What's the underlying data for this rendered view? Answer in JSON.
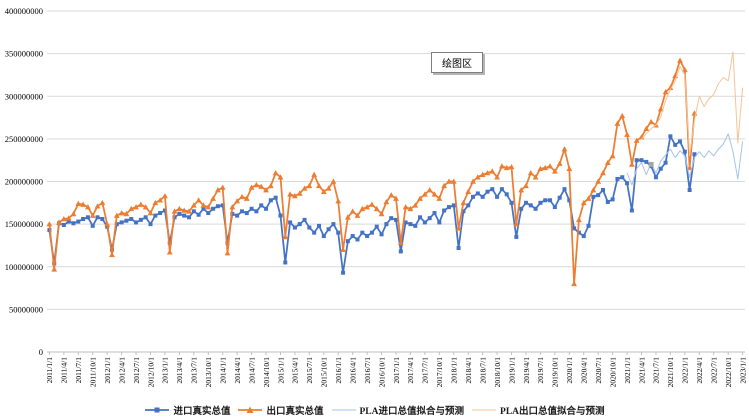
{
  "window": {
    "background": "#FFFFFF"
  },
  "chart_data": {
    "type": "line",
    "title": "",
    "plot_area_label": "绘图区",
    "grid": "horizontal-on",
    "legend_position": "bottom",
    "value_unit_multiplier": 1000000,
    "y_axis": {
      "min": 0,
      "max": 400000000,
      "step": 50000000,
      "tick_labels_top_to_bottom": [
        "400000000",
        "350000000",
        "300000000",
        "250000000",
        "200000000",
        "150000000",
        "100000000",
        "50000000",
        "0"
      ]
    },
    "x_axis": {
      "start": "2011/1/1",
      "end": "2023/1/1",
      "data_granularity": "monthly",
      "label_rotation_degrees": -90,
      "tick_labels": [
        "2011/1/1",
        "2011/4/1",
        "2011/7/1",
        "2011/10/1",
        "2012/1/1",
        "2012/4/1",
        "2012/7/1",
        "2012/10/1",
        "2013/1/1",
        "2013/4/1",
        "2013/7/1",
        "2013/10/1",
        "2014/1/1",
        "2014/4/1",
        "2014/7/1",
        "2014/10/1",
        "2015/1/1",
        "2015/4/1",
        "2015/7/1",
        "2015/10/1",
        "2016/1/1",
        "2016/4/1",
        "2016/7/1",
        "2016/10/1",
        "2017/1/1",
        "2017/4/1",
        "2017/7/1",
        "2017/10/1",
        "2018/1/1",
        "2018/4/1",
        "2018/7/1",
        "2018/10/1",
        "2019/1/1",
        "2019/4/1",
        "2019/7/1",
        "2019/10/1",
        "2020/1/1",
        "2020/4/1",
        "2020/7/1",
        "2020/10/1",
        "2021/1/1",
        "2021/4/1",
        "2021/7/1",
        "2021/10/1",
        "2022/1/1",
        "2022/4/1",
        "2022/7/1",
        "2022/10/1",
        "2023/1/1"
      ]
    },
    "series": [
      {
        "name": "进口真实总值",
        "color": "#4472C4",
        "marker": "square",
        "line_width": 1.75,
        "start_month_index": 0,
        "values_millions": [
          143,
          104,
          151,
          149,
          153,
          151,
          153,
          156,
          158,
          148,
          158,
          156,
          147,
          120,
          150,
          152,
          154,
          156,
          152,
          155,
          158,
          150,
          160,
          163,
          166,
          128,
          158,
          162,
          160,
          158,
          165,
          161,
          168,
          163,
          168,
          171,
          172,
          128,
          162,
          160,
          165,
          163,
          168,
          165,
          172,
          168,
          178,
          181,
          160,
          105,
          152,
          146,
          150,
          155,
          146,
          140,
          148,
          136,
          144,
          150,
          140,
          93,
          130,
          136,
          132,
          140,
          136,
          140,
          147,
          138,
          150,
          157,
          155,
          118,
          152,
          150,
          148,
          158,
          152,
          157,
          163,
          152,
          166,
          170,
          172,
          122,
          165,
          172,
          182,
          186,
          182,
          188,
          191,
          182,
          191,
          185,
          175,
          135,
          168,
          175,
          172,
          168,
          175,
          178,
          178,
          170,
          181,
          191,
          178,
          145,
          140,
          136,
          148,
          182,
          184,
          190,
          176,
          179,
          203,
          205,
          198,
          166,
          225,
          225,
          223,
          218,
          205,
          215,
          222,
          253,
          243,
          247,
          235,
          190,
          232
        ]
      },
      {
        "name": "出口真实总值",
        "color": "#ED7D31",
        "marker": "triangle",
        "line_width": 1.75,
        "start_month_index": 0,
        "values_millions": [
          150,
          97,
          152,
          156,
          157,
          162,
          174,
          173,
          170,
          160,
          171,
          175,
          150,
          114,
          160,
          163,
          162,
          168,
          170,
          173,
          170,
          163,
          175,
          178,
          183,
          117,
          165,
          168,
          166,
          165,
          172,
          178,
          172,
          170,
          180,
          190,
          193,
          116,
          170,
          177,
          182,
          180,
          193,
          196,
          194,
          190,
          195,
          210,
          205,
          135,
          185,
          183,
          186,
          192,
          195,
          208,
          195,
          188,
          192,
          200,
          177,
          120,
          158,
          165,
          160,
          168,
          170,
          173,
          168,
          162,
          176,
          184,
          180,
          128,
          170,
          168,
          172,
          180,
          185,
          190,
          185,
          180,
          195,
          200,
          200,
          145,
          175,
          188,
          200,
          205,
          208,
          210,
          212,
          205,
          218,
          216,
          217,
          150,
          190,
          195,
          210,
          205,
          215,
          216,
          218,
          212,
          221,
          238,
          215,
          80,
          155,
          175,
          180,
          190,
          200,
          210,
          222,
          230,
          268,
          277,
          255,
          220,
          248,
          252,
          262,
          270,
          266,
          285,
          305,
          310,
          324,
          342,
          331,
          216,
          280
        ]
      },
      {
        "name": "PLA进口总值拟合与预测",
        "color": "#A6C3E3",
        "marker": "none",
        "line_width": 1,
        "start_month_index": 120,
        "values_millions": [
          210,
          196,
          215,
          222,
          208,
          222,
          210,
          224,
          231,
          238,
          228,
          236,
          230,
          205,
          228,
          235,
          228,
          236,
          230,
          238,
          244,
          256,
          235,
          203,
          247
        ]
      },
      {
        "name": "PLA出口总值拟合与预测",
        "color": "#F3C495",
        "marker": "none",
        "line_width": 1,
        "start_month_index": 123,
        "values_millions": [
          250,
          256,
          262,
          266,
          276,
          295,
          308,
          318,
          335,
          325,
          230,
          272,
          300,
          288,
          297,
          302,
          315,
          322,
          318,
          352,
          245,
          310
        ]
      }
    ],
    "stray_point": {
      "month_index": 125,
      "value_millions": 220,
      "color": "#A6A6A6",
      "marker": "square"
    },
    "axis_colors": {
      "gridline": "#D9D9D9",
      "axis_line": "#BFBFBF",
      "tick_text": "#000000"
    }
  }
}
